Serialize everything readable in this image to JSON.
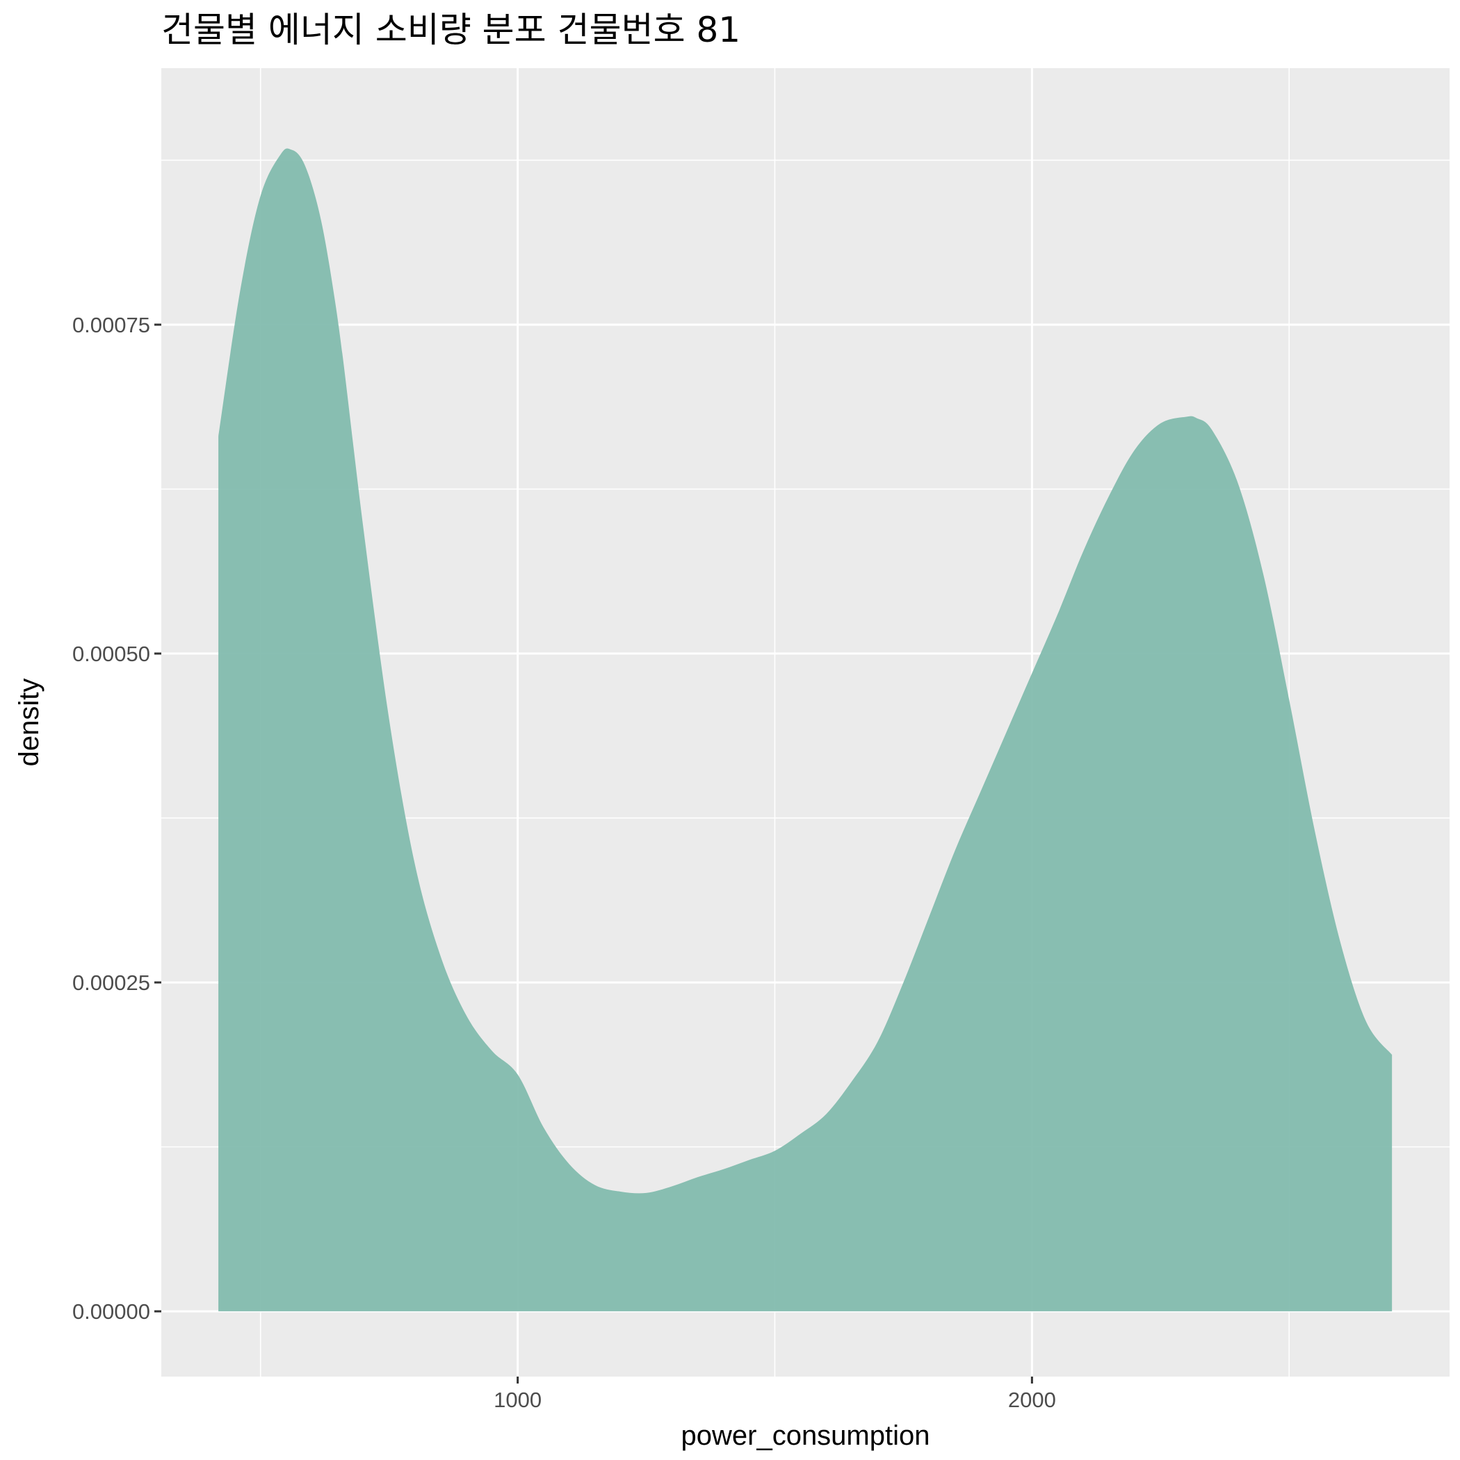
{
  "chart_data": {
    "type": "area",
    "title": "건물별 에너지 소비량 분포 건물번호 81",
    "xlabel": "power_consumption",
    "ylabel": "density",
    "xlim": [
      307,
      2812
    ],
    "ylim": [
      -4.96e-05,
      0.000945
    ],
    "x_major_ticks": [
      1000,
      2000
    ],
    "x_minor_gridlines": [
      500,
      1500,
      2500
    ],
    "y_major_ticks": [
      0,
      0.00025,
      0.0005,
      0.00075
    ],
    "y_tick_labels": [
      "0.00000",
      "0.00025",
      "0.00050",
      "0.00075"
    ],
    "y_minor_gridlines": [
      0.000125,
      0.000375,
      0.000625,
      0.000875
    ],
    "grid": true,
    "legend": "none",
    "fill_color": "#7fbaab",
    "panel_color": "#ebebeb",
    "series": [
      {
        "x": [
          418,
          460,
          500,
          540,
          560,
          580,
          600,
          620,
          640,
          660,
          700,
          750,
          800,
          850,
          900,
          950,
          1000,
          1050,
          1100,
          1150,
          1200,
          1250,
          1300,
          1350,
          1400,
          1450,
          1500,
          1550,
          1600,
          1650,
          1700,
          1750,
          1800,
          1850,
          1900,
          1950,
          2000,
          2050,
          2100,
          2150,
          2200,
          2250,
          2300,
          2320,
          2350,
          2400,
          2450,
          2500,
          2550,
          2600,
          2650,
          2700
        ],
        "y": [
          0.000665,
          0.000775,
          0.000848,
          0.00088,
          0.000883,
          0.000876,
          0.000856,
          0.000825,
          0.00078,
          0.000725,
          0.000595,
          0.00045,
          0.00034,
          0.00027,
          0.000225,
          0.000198,
          0.00018,
          0.00014,
          0.000112,
          9.6e-05,
          9.1e-05,
          9e-05,
          9.5e-05,
          0.000102,
          0.000108,
          0.000115,
          0.000122,
          0.000135,
          0.00015,
          0.000175,
          0.000205,
          0.00025,
          0.0003,
          0.00035,
          0.000395,
          0.00044,
          0.000485,
          0.00053,
          0.000578,
          0.00062,
          0.000655,
          0.000675,
          0.00068,
          0.000679,
          0.00067,
          0.00063,
          0.00056,
          0.000465,
          0.000365,
          0.00028,
          0.00022,
          0.000195
        ]
      }
    ]
  }
}
